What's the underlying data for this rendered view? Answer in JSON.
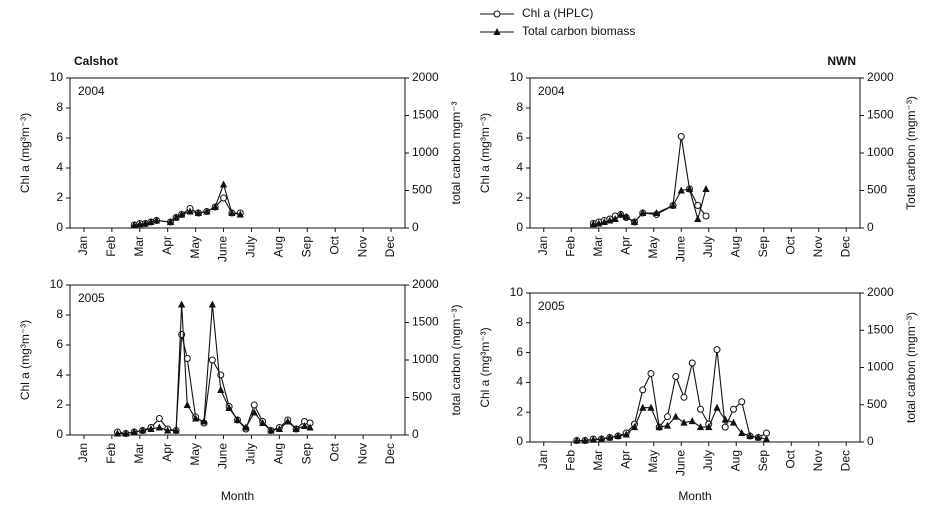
{
  "chart_data": [
    {
      "type": "line",
      "title": "Calshot",
      "annotation": "2004",
      "ylabel": "Chl a (mg³m⁻³)",
      "y2label": "total carbon mgm⁻³",
      "xlim": [
        0,
        12
      ],
      "xticks": [
        {
          "value": 0.5,
          "label": "Jan"
        },
        {
          "value": 1.5,
          "label": "Feb"
        },
        {
          "value": 2.5,
          "label": "Mar"
        },
        {
          "value": 3.5,
          "label": "Apr"
        },
        {
          "value": 4.5,
          "label": "May"
        },
        {
          "value": 5.5,
          "label": "June"
        },
        {
          "value": 6.5,
          "label": "July"
        },
        {
          "value": 7.5,
          "label": "Aug"
        },
        {
          "value": 8.5,
          "label": "Sep"
        },
        {
          "value": 9.5,
          "label": "Oct"
        },
        {
          "value": 10.5,
          "label": "Nov"
        },
        {
          "value": 11.5,
          "label": "Dec"
        }
      ],
      "ylim": [
        0,
        10
      ],
      "yticks": [
        0,
        2,
        4,
        6,
        8,
        10
      ],
      "y2lim": [
        0,
        2000
      ],
      "y2ticks": [
        0,
        500,
        1000,
        1500,
        2000
      ],
      "x": [
        2.3,
        2.5,
        2.7,
        2.9,
        3.1,
        3.6,
        3.8,
        4.0,
        4.3,
        4.6,
        4.9,
        5.2,
        5.5,
        5.8,
        6.1
      ],
      "series": [
        {
          "name": "Chl a (HPLC)",
          "color": "#111111",
          "marker": "circle",
          "values": [
            0.2,
            0.3,
            0.3,
            0.4,
            0.5,
            0.4,
            0.7,
            0.9,
            1.3,
            1.0,
            1.1,
            1.4,
            2.0,
            1.0,
            1.0
          ]
        },
        {
          "name": "Total carbon biomass",
          "color": "#111111",
          "marker": "triangle",
          "axis": "y2",
          "values": [
            40,
            50,
            60,
            80,
            100,
            80,
            140,
            180,
            220,
            200,
            220,
            280,
            580,
            200,
            180
          ]
        }
      ]
    },
    {
      "type": "line",
      "title": "NWN",
      "annotation": "2004",
      "ylabel": "Chl a (mg³m⁻³)",
      "y2label": "Total carbon (mgm⁻³)",
      "xlim": [
        0,
        12
      ],
      "xticks": [
        {
          "value": 0.5,
          "label": "Jan"
        },
        {
          "value": 1.5,
          "label": "Feb"
        },
        {
          "value": 2.5,
          "label": "Mar"
        },
        {
          "value": 3.5,
          "label": "Apr"
        },
        {
          "value": 4.5,
          "label": "May"
        },
        {
          "value": 5.5,
          "label": "June"
        },
        {
          "value": 6.5,
          "label": "July"
        },
        {
          "value": 7.5,
          "label": "Aug"
        },
        {
          "value": 8.5,
          "label": "Sep"
        },
        {
          "value": 9.5,
          "label": "Oct"
        },
        {
          "value": 10.5,
          "label": "Nov"
        },
        {
          "value": 11.5,
          "label": "Dec"
        }
      ],
      "ylim": [
        0,
        10
      ],
      "yticks": [
        0,
        2,
        4,
        6,
        8,
        10
      ],
      "y2lim": [
        0,
        2000
      ],
      "y2ticks": [
        0,
        500,
        1000,
        1500,
        2000
      ],
      "x": [
        2.3,
        2.5,
        2.7,
        2.9,
        3.1,
        3.3,
        3.5,
        3.8,
        4.1,
        4.6,
        5.2,
        5.5,
        5.8,
        6.1,
        6.4
      ],
      "series": [
        {
          "color": "#111111",
          "marker": "circle",
          "values": [
            0.3,
            0.4,
            0.5,
            0.6,
            0.8,
            0.9,
            0.7,
            0.4,
            1.0,
            0.9,
            1.5,
            6.1,
            2.6,
            1.5,
            0.8
          ]
        },
        {
          "color": "#111111",
          "marker": "triangle",
          "axis": "y2",
          "values": [
            50,
            60,
            80,
            100,
            120,
            180,
            150,
            80,
            200,
            200,
            300,
            500,
            520,
            120,
            520
          ]
        }
      ]
    },
    {
      "type": "line",
      "annotation": "2005",
      "xlabel": "Month",
      "ylabel": "Chl a (mg³m⁻³)",
      "y2label": "total carbon (mgm⁻³)",
      "xlim": [
        0,
        12
      ],
      "xticks": [
        {
          "value": 0.5,
          "label": "Jan"
        },
        {
          "value": 1.5,
          "label": "Feb"
        },
        {
          "value": 2.5,
          "label": "Mar"
        },
        {
          "value": 3.5,
          "label": "Apr"
        },
        {
          "value": 4.5,
          "label": "May"
        },
        {
          "value": 5.5,
          "label": "June"
        },
        {
          "value": 6.5,
          "label": "July"
        },
        {
          "value": 7.5,
          "label": "Aug"
        },
        {
          "value": 8.5,
          "label": "Sep"
        },
        {
          "value": 9.5,
          "label": "Oct"
        },
        {
          "value": 10.5,
          "label": "Nov"
        },
        {
          "value": 11.5,
          "label": "Dec"
        }
      ],
      "ylim": [
        0,
        10
      ],
      "yticks": [
        0,
        2,
        4,
        6,
        8,
        10
      ],
      "y2lim": [
        0,
        2000
      ],
      "y2ticks": [
        0,
        500,
        1000,
        1500,
        2000
      ],
      "x": [
        1.7,
        2.0,
        2.3,
        2.6,
        2.9,
        3.2,
        3.5,
        3.8,
        4.0,
        4.2,
        4.5,
        4.8,
        5.1,
        5.4,
        5.7,
        6.0,
        6.3,
        6.6,
        6.9,
        7.2,
        7.5,
        7.8,
        8.1,
        8.4,
        8.6
      ],
      "series": [
        {
          "color": "#111111",
          "marker": "circle",
          "values": [
            0.2,
            0.1,
            0.2,
            0.3,
            0.5,
            1.1,
            0.4,
            0.3,
            6.7,
            5.1,
            1.2,
            0.8,
            5.0,
            4.0,
            1.9,
            1.0,
            0.4,
            2.0,
            0.9,
            0.3,
            0.5,
            1.0,
            0.4,
            0.9,
            0.8
          ]
        },
        {
          "color": "#111111",
          "marker": "triangle",
          "axis": "y2",
          "values": [
            20,
            20,
            40,
            60,
            80,
            100,
            60,
            60,
            1740,
            400,
            220,
            180,
            1740,
            600,
            360,
            200,
            100,
            300,
            160,
            60,
            80,
            180,
            80,
            120,
            100
          ]
        }
      ]
    },
    {
      "type": "line",
      "annotation": "2005",
      "xlabel": "Month",
      "ylabel": "Chl a (mg³m⁻³)",
      "y2label": "total carbon (mgm⁻³)",
      "xlim": [
        0,
        12
      ],
      "xticks": [
        {
          "value": 0.5,
          "label": "Jan"
        },
        {
          "value": 1.5,
          "label": "Feb"
        },
        {
          "value": 2.5,
          "label": "Mar"
        },
        {
          "value": 3.5,
          "label": "Apr"
        },
        {
          "value": 4.5,
          "label": "May"
        },
        {
          "value": 5.5,
          "label": "June"
        },
        {
          "value": 6.5,
          "label": "July"
        },
        {
          "value": 7.5,
          "label": "Aug"
        },
        {
          "value": 8.5,
          "label": "Sep"
        },
        {
          "value": 9.5,
          "label": "Oct"
        },
        {
          "value": 10.5,
          "label": "Nov"
        },
        {
          "value": 11.5,
          "label": "Dec"
        }
      ],
      "ylim": [
        0,
        10
      ],
      "yticks": [
        0,
        2,
        4,
        6,
        8,
        10
      ],
      "y2lim": [
        0,
        2000
      ],
      "y2ticks": [
        0,
        500,
        1000,
        1500,
        2000
      ],
      "x": [
        1.7,
        2.0,
        2.3,
        2.6,
        2.9,
        3.2,
        3.5,
        3.8,
        4.1,
        4.4,
        4.7,
        5.0,
        5.3,
        5.6,
        5.9,
        6.2,
        6.5,
        6.8,
        7.1,
        7.4,
        7.7,
        8.0,
        8.3,
        8.6
      ],
      "series": [
        {
          "color": "#111111",
          "marker": "circle",
          "values": [
            0.1,
            0.1,
            0.2,
            0.2,
            0.3,
            0.4,
            0.6,
            1.2,
            3.5,
            4.6,
            1.0,
            1.7,
            4.4,
            3.0,
            5.3,
            2.2,
            1.2,
            6.2,
            1.0,
            2.2,
            2.7,
            0.4,
            0.3,
            0.6
          ]
        },
        {
          "color": "#111111",
          "marker": "triangle",
          "axis": "y2",
          "values": [
            20,
            20,
            30,
            40,
            60,
            80,
            100,
            200,
            460,
            460,
            200,
            220,
            340,
            260,
            280,
            200,
            200,
            460,
            300,
            260,
            120,
            80,
            60,
            40
          ]
        }
      ]
    }
  ]
}
